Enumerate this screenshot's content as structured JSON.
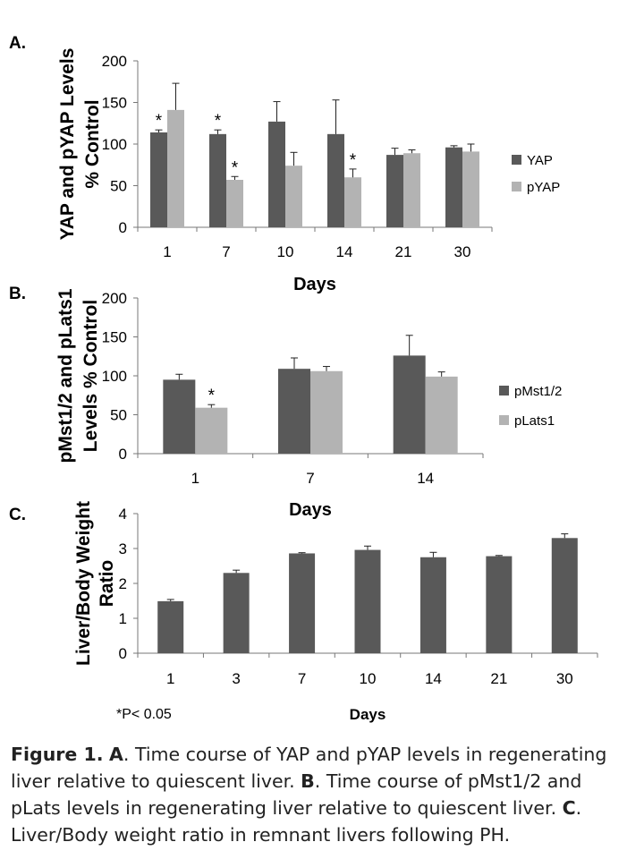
{
  "chart_data": [
    {
      "panel_label": "A.",
      "type": "bar",
      "categories": [
        "1",
        "7",
        "10",
        "14",
        "21",
        "30"
      ],
      "series": [
        {
          "name": "YAP",
          "values": [
            114,
            112,
            127,
            112,
            87,
            96
          ],
          "errors": [
            3,
            5,
            24,
            41,
            8,
            2
          ]
        },
        {
          "name": "pYAP",
          "values": [
            141,
            57,
            74,
            60,
            89,
            91
          ],
          "errors": [
            32,
            4,
            16,
            10,
            4,
            9
          ]
        }
      ],
      "significance": [
        {
          "category": "1",
          "series": "YAP",
          "mark": "*"
        },
        {
          "category": "7",
          "series": "YAP",
          "mark": "*"
        },
        {
          "category": "7",
          "series": "pYAP",
          "mark": "*"
        },
        {
          "category": "14",
          "series": "pYAP",
          "mark": "*"
        }
      ],
      "ylabel": [
        "YAP and pYAP Levels",
        "% Control"
      ],
      "xlabel": "Days",
      "ylim": [
        0,
        200
      ],
      "yticks": [
        0,
        50,
        100,
        150,
        200
      ],
      "colors": [
        "#595959",
        "#b3b3b3"
      ],
      "legend_position": "right"
    },
    {
      "panel_label": "B.",
      "type": "bar",
      "categories": [
        "1",
        "7",
        "14"
      ],
      "series": [
        {
          "name": "pMst1/2",
          "values": [
            95,
            109,
            126
          ],
          "errors": [
            7,
            14,
            26
          ]
        },
        {
          "name": "pLats1",
          "values": [
            59,
            106,
            99
          ],
          "errors": [
            4,
            6,
            6
          ]
        }
      ],
      "significance": [
        {
          "category": "1",
          "series": "pLats1",
          "mark": "*"
        }
      ],
      "ylabel": [
        "pMst1/2 and pLats1",
        "Levels % Control"
      ],
      "xlabel": "Days",
      "ylim": [
        0,
        200
      ],
      "yticks": [
        0,
        50,
        100,
        150,
        200
      ],
      "colors": [
        "#595959",
        "#b3b3b3"
      ],
      "legend_position": "right"
    },
    {
      "panel_label": "C.",
      "type": "bar",
      "categories": [
        "1",
        "3",
        "7",
        "10",
        "14",
        "21",
        "30"
      ],
      "series": [
        {
          "name": "",
          "values": [
            1.49,
            2.3,
            2.86,
            2.96,
            2.75,
            2.78,
            3.3
          ],
          "errors": [
            0.05,
            0.08,
            0.02,
            0.11,
            0.14,
            0.02,
            0.12
          ]
        }
      ],
      "ylabel": [
        "Liver/Body Weight",
        "Ratio"
      ],
      "xlabel": "Days",
      "ylim": [
        0,
        4
      ],
      "yticks": [
        0,
        1,
        2,
        3,
        4
      ],
      "colors": [
        "#595959"
      ],
      "note": "*P< 0.05"
    }
  ],
  "caption": {
    "line1_bold": "Figure 1.",
    "line1_rest_a": "  A",
    "line1_rest_b": ". Time course of YAP and pYAP levels in regenerating",
    "line2_a": "liver relative to quiescent liver.   ",
    "line2_b": "B",
    "line2_c": ". Time course of pMst1/2 and",
    "line3_a": "pLats levels in regenerating liver relative to quiescent liver.  ",
    "line3_b": "C",
    "line3_c": ".",
    "line4": "Liver/Body weight ratio in remnant livers following PH."
  }
}
